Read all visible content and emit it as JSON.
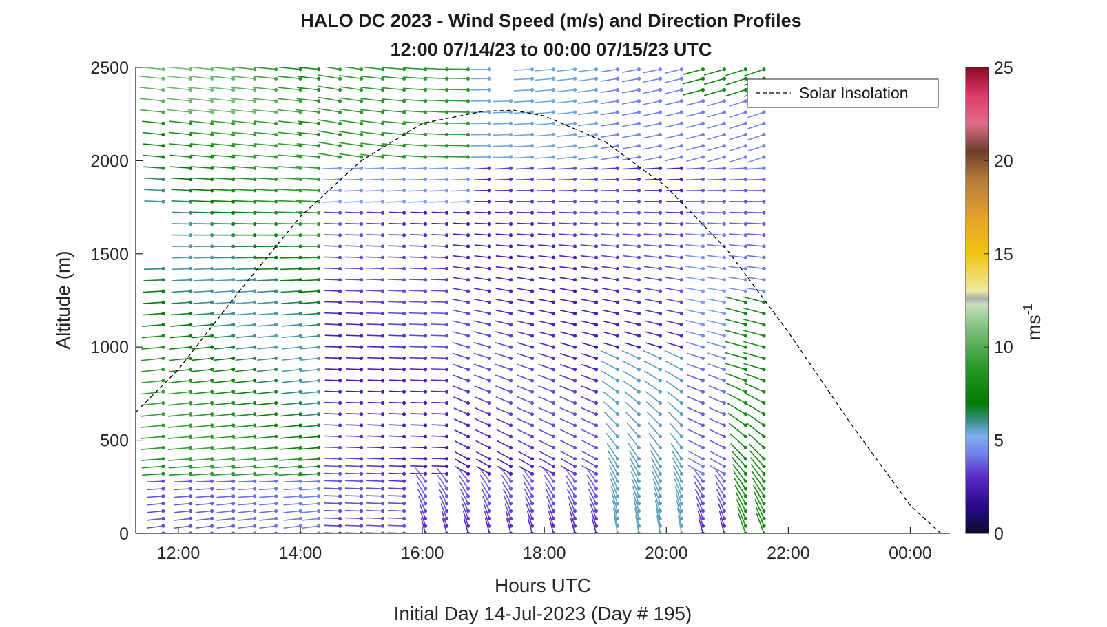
{
  "chart_data": {
    "type": "scatter",
    "chart_kind": "wind barb profiles (time-altitude quiver plot colored by wind speed)",
    "title": "HALO DC 2023 - Wind Speed (m/s) and Direction Profiles",
    "subtitle": "12:00 07/14/23 to 00:00 07/15/23  UTC",
    "xlabel": "Hours UTC",
    "ylabel": "Altitude (m)",
    "footer": "Initial Day 14-Jul-2023 (Day # 195)",
    "colorbar_label": "ms",
    "colorbar_label_exponent": "-1",
    "x_unit": "hours UTC",
    "xlim": [
      11.3,
      24.65
    ],
    "ylim": [
      0,
      2500
    ],
    "x_ticks": [
      12,
      14,
      16,
      18,
      20,
      22,
      24
    ],
    "x_tick_labels": [
      "12:00",
      "14:00",
      "16:00",
      "18:00",
      "20:00",
      "22:00",
      "00:00"
    ],
    "y_ticks": [
      0,
      500,
      1000,
      1500,
      2000,
      2500
    ],
    "y_tick_labels": [
      "0",
      "500",
      "1000",
      "1500",
      "2000",
      "2500"
    ],
    "colorbar_range": [
      0,
      25
    ],
    "colorbar_ticks": [
      0,
      5,
      10,
      15,
      20,
      25
    ],
    "colorbar_tick_labels": [
      "0",
      "5",
      "10",
      "15",
      "20",
      "25"
    ],
    "colormap": [
      {
        "v": 0,
        "color": "#0b0b2e"
      },
      {
        "v": 1.5,
        "color": "#2a0a8c"
      },
      {
        "v": 3,
        "color": "#5a28c8"
      },
      {
        "v": 4.2,
        "color": "#6f7ee8"
      },
      {
        "v": 5.2,
        "color": "#7fb0f0"
      },
      {
        "v": 6,
        "color": "#3d8f8f"
      },
      {
        "v": 7,
        "color": "#007a00"
      },
      {
        "v": 9,
        "color": "#2c9a2c"
      },
      {
        "v": 11,
        "color": "#7ec07e"
      },
      {
        "v": 12.3,
        "color": "#c8e0c0"
      },
      {
        "v": 12.6,
        "color": "#aaaaaa"
      },
      {
        "v": 13,
        "color": "#efeaa0"
      },
      {
        "v": 15,
        "color": "#f1c40f"
      },
      {
        "v": 17,
        "color": "#e6a02a"
      },
      {
        "v": 19,
        "color": "#b57a3a"
      },
      {
        "v": 20.5,
        "color": "#6b3e2a"
      },
      {
        "v": 22,
        "color": "#e06b8a"
      },
      {
        "v": 23.5,
        "color": "#e03a6a"
      },
      {
        "v": 25,
        "color": "#8a0a20"
      }
    ],
    "legend": [
      {
        "name": "Solar Insolation",
        "style": "dashed",
        "color": "#000000"
      }
    ],
    "legend_position": "top-right",
    "grid": false,
    "profile_times": [
      11.75,
      12.2,
      12.55,
      12.9,
      13.25,
      13.6,
      14.0,
      14.3,
      14.65,
      15.0,
      15.35,
      15.7,
      16.05,
      16.4,
      16.75,
      17.1,
      17.45,
      17.8,
      18.15,
      18.5,
      18.85,
      19.2,
      19.55,
      19.9,
      20.25,
      20.6,
      20.95,
      21.3,
      21.6
    ],
    "altitude_levels": [
      0,
      40,
      80,
      120,
      160,
      200,
      240,
      280,
      320,
      360,
      400,
      460,
      520,
      580,
      640,
      700,
      760,
      820,
      880,
      940,
      1000,
      1060,
      1120,
      1180,
      1240,
      1300,
      1360,
      1420,
      1480,
      1540,
      1600,
      1660,
      1720,
      1780,
      1840,
      1900,
      1960,
      2020,
      2080,
      2140,
      2200,
      2260,
      2320,
      2380,
      2440,
      2490
    ],
    "profiles_description": "Low levels (0-300 m) weak 2-5 m/s winds, blue/purple, becoming near-vertical barbs after 16:00; 14:30-21:00 between 300-1900 m dominated by 3-5 m/s purple winds from the west; 11:45-14:30 strong 7-11 m/s green westerlies throughout; above 2000 m green (left) to blue/purple (right); late afternoon 21:00-21:45 green again below 1200 m.",
    "solar_insolation": {
      "x": [
        11.3,
        12.0,
        13.0,
        14.0,
        15.0,
        16.0,
        17.0,
        17.5,
        18.0,
        19.0,
        20.0,
        21.0,
        22.0,
        23.0,
        24.0,
        24.5
      ],
      "y": [
        650,
        880,
        1300,
        1700,
        2000,
        2200,
        2265,
        2270,
        2240,
        2100,
        1860,
        1520,
        1080,
        600,
        150,
        0
      ]
    },
    "annotations": []
  }
}
